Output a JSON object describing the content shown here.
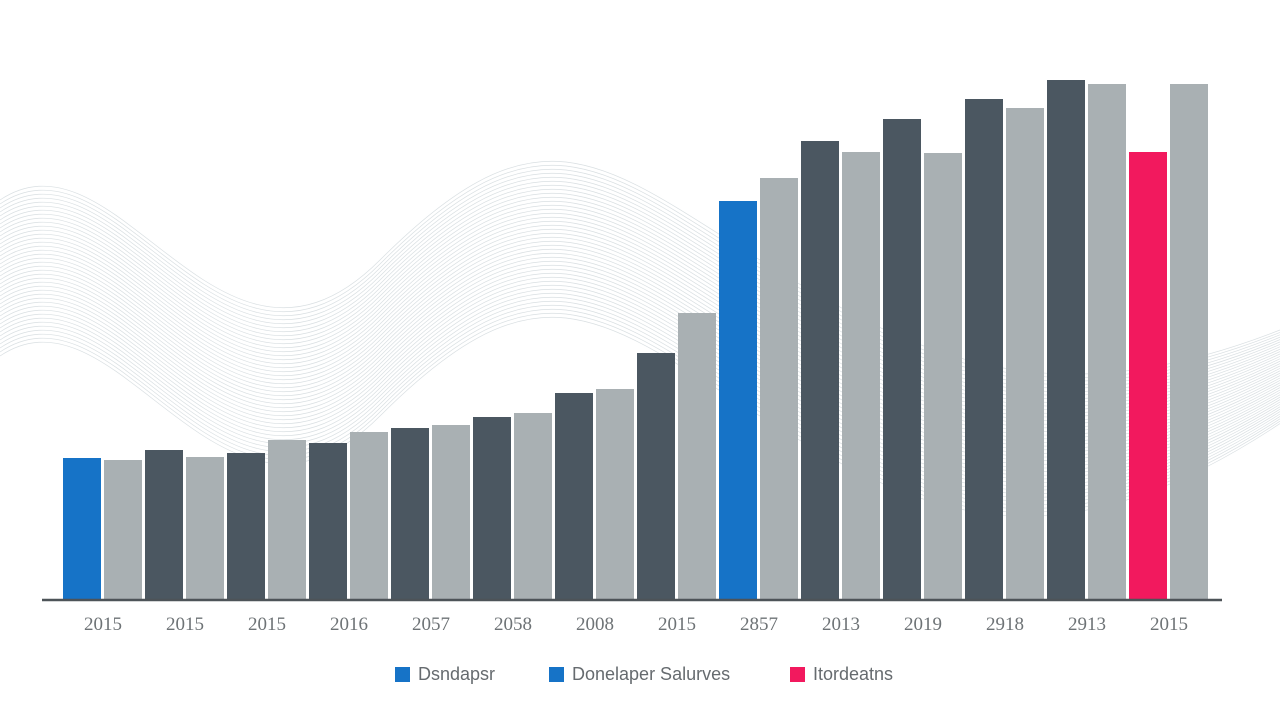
{
  "chart_data": {
    "type": "bar",
    "title": "",
    "xlabel": "",
    "ylabel": "",
    "ylim": [
      0,
      110
    ],
    "grid": false,
    "legend_placement": "bottom",
    "categories": [
      "2015",
      "2015",
      "2015",
      "2016",
      "2057",
      "2058",
      "2008",
      "2015",
      "2857",
      "2013",
      "2019",
      "2918",
      "2913",
      "2015"
    ],
    "series": [
      {
        "values": [
          28.4,
          30,
          29.4,
          31.4,
          34.4,
          36.6,
          41.4,
          49.4,
          79.8,
          91.8,
          96.2,
          100.2,
          104,
          89.6
        ],
        "colors": [
          "#1673c7",
          "#4b5761",
          "#4b5761",
          "#4b5761",
          "#4b5761",
          "#4b5761",
          "#4b5761",
          "#4b5761",
          "#1673c7",
          "#4b5761",
          "#4b5761",
          "#4b5761",
          "#4b5761",
          "#f2195e"
        ]
      },
      {
        "values": [
          28,
          28.6,
          32,
          33.6,
          35,
          37.4,
          42.2,
          57.4,
          84.4,
          89.6,
          89.4,
          98.4,
          103.2,
          103.2
        ],
        "colors": [
          "#a9b0b3",
          "#a9b0b3",
          "#a9b0b3",
          "#a9b0b3",
          "#a9b0b3",
          "#a9b0b3",
          "#a9b0b3",
          "#a9b0b3",
          "#a9b0b3",
          "#a9b0b3",
          "#a9b0b3",
          "#a9b0b3",
          "#a9b0b3",
          "#a9b0b3"
        ]
      }
    ],
    "legend": [
      {
        "label": "Dsndapsr",
        "color": "#1673c7"
      },
      {
        "label": "Donelaper Salurves",
        "color": "#1673c7"
      },
      {
        "label": "Itordeatns",
        "color": "#f2195e"
      }
    ]
  }
}
